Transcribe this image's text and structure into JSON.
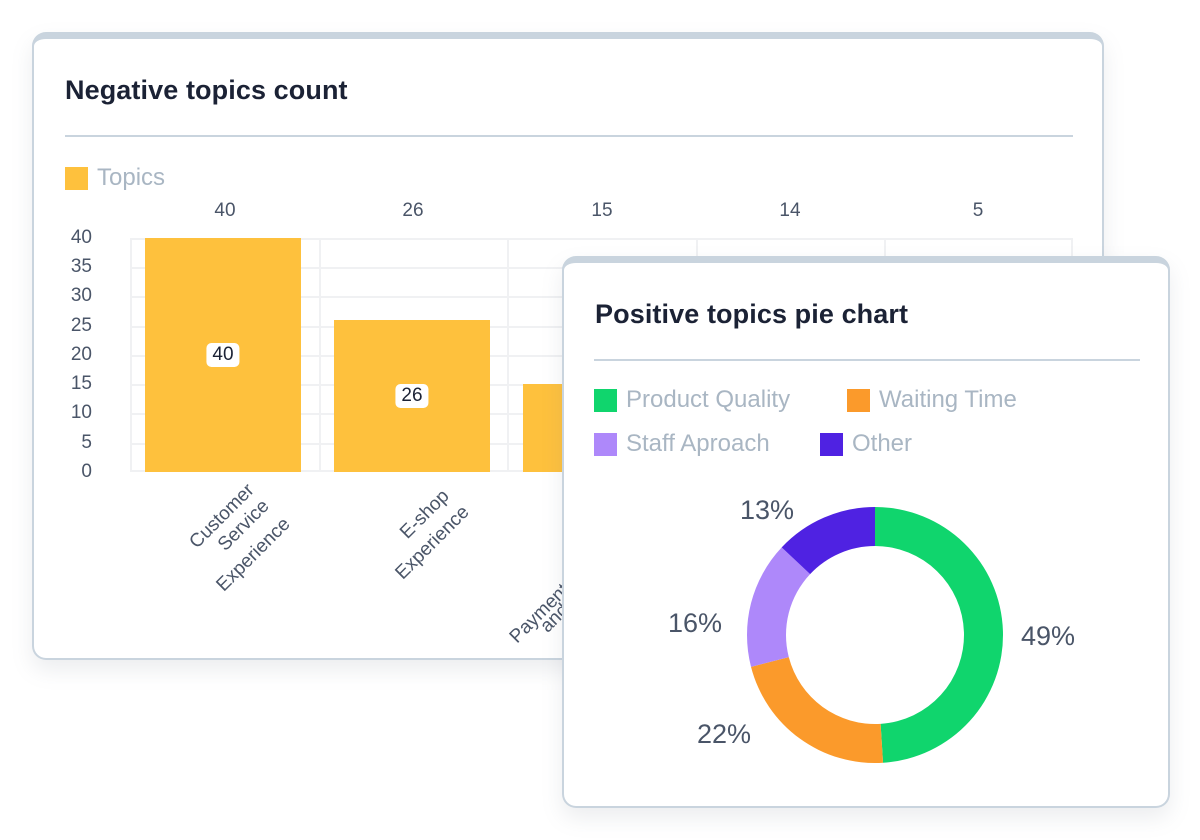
{
  "bar_card": {
    "title": "Negative topics count",
    "legend": [
      {
        "label": "Topics",
        "color": "#fec13d"
      }
    ]
  },
  "pie_card": {
    "title": "Positive topics pie chart",
    "legend": [
      {
        "label": "Product Quality",
        "color": "#10d56d"
      },
      {
        "label": "Waiting Time",
        "color": "#fb9a2b"
      },
      {
        "label": "Staff Aproach",
        "color": "#ae88fa"
      },
      {
        "label": "Other",
        "color": "#4f22e2"
      }
    ]
  },
  "chart_data": [
    {
      "type": "bar",
      "title": "Negative topics count",
      "categories": [
        "Customer Service Experience",
        "E-shop Experience",
        "Payment and ...",
        "",
        ""
      ],
      "series": [
        {
          "name": "Topics",
          "values": [
            40,
            26,
            15,
            14,
            5
          ],
          "color": "#fec13d"
        }
      ],
      "top_value_labels": [
        "40",
        "26",
        "15",
        "14",
        "5"
      ],
      "in_bar_labels": [
        "40",
        "26"
      ],
      "yticks": [
        "40",
        "35",
        "30",
        "25",
        "20",
        "15",
        "10",
        "5",
        "0"
      ],
      "ylim": [
        0,
        40
      ],
      "xlabel": "",
      "ylabel": "",
      "grid": true,
      "legend_position": "top-left"
    },
    {
      "type": "pie",
      "title": "Positive topics pie chart",
      "donut": true,
      "categories": [
        "Product Quality",
        "Waiting Time",
        "Staff Aproach",
        "Other"
      ],
      "values": [
        49,
        22,
        16,
        13
      ],
      "labels": [
        "49%",
        "22%",
        "16%",
        "13%"
      ],
      "colors": [
        "#10d56d",
        "#fb9a2b",
        "#ae88fa",
        "#4f22e2"
      ],
      "legend_position": "top-left"
    }
  ]
}
